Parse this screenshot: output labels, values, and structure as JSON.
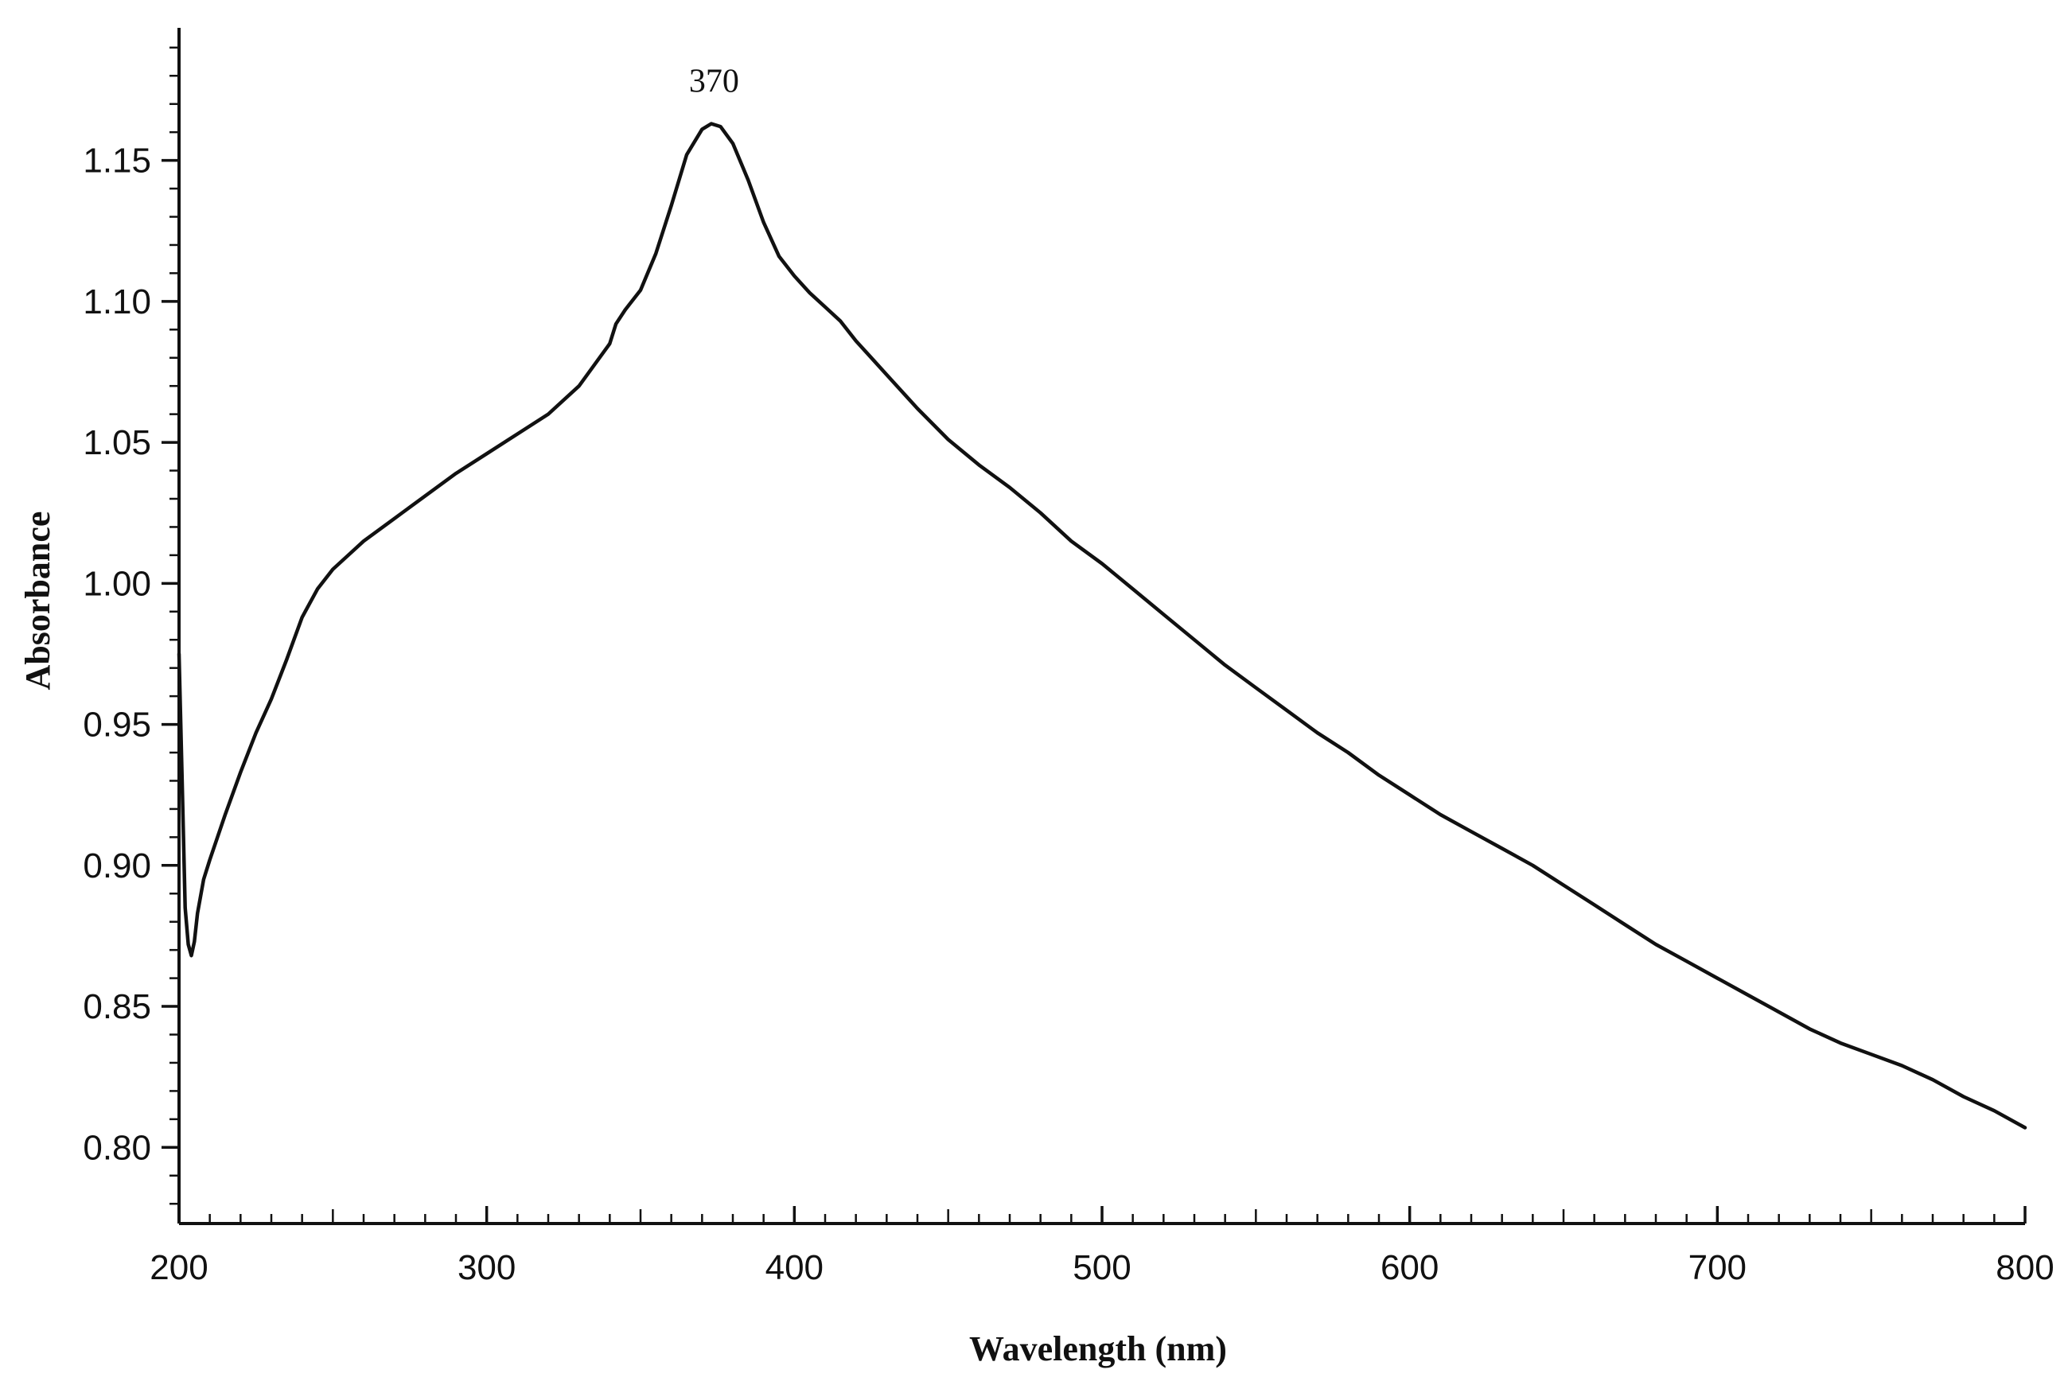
{
  "chart_data": {
    "type": "line",
    "title": "",
    "xlabel": "Wavelength (nm)",
    "ylabel": "Absorbance",
    "xlim": [
      200,
      800
    ],
    "ylim": [
      0.773,
      1.197
    ],
    "xticks": [
      200,
      300,
      400,
      500,
      600,
      700,
      800
    ],
    "xtick_labels": [
      "200",
      "300",
      "400",
      "500",
      "600",
      "700",
      "800"
    ],
    "x_minor_step": 10,
    "yticks": [
      0.8,
      0.85,
      0.9,
      0.95,
      1.0,
      1.05,
      1.1,
      1.15
    ],
    "ytick_labels": [
      "0.80",
      "0.85",
      "0.90",
      "0.95",
      "1.00",
      "1.05",
      "1.10",
      "1.15"
    ],
    "y_minor_step": 0.01,
    "grid": false,
    "legend": "none",
    "line_color": "#111111",
    "annotations": [
      {
        "text": "370",
        "x": 370,
        "y": 1.163
      }
    ],
    "series": [
      {
        "values": [
          [
            200,
            0.975
          ],
          [
            201,
            0.93
          ],
          [
            202,
            0.885
          ],
          [
            203,
            0.872
          ],
          [
            204,
            0.868
          ],
          [
            205,
            0.873
          ],
          [
            206,
            0.883
          ],
          [
            208,
            0.895
          ],
          [
            210,
            0.902
          ],
          [
            215,
            0.918
          ],
          [
            220,
            0.933
          ],
          [
            225,
            0.947
          ],
          [
            230,
            0.959
          ],
          [
            235,
            0.973
          ],
          [
            240,
            0.988
          ],
          [
            245,
            0.998
          ],
          [
            250,
            1.005
          ],
          [
            255,
            1.01
          ],
          [
            260,
            1.015
          ],
          [
            270,
            1.023
          ],
          [
            280,
            1.031
          ],
          [
            290,
            1.039
          ],
          [
            300,
            1.046
          ],
          [
            310,
            1.053
          ],
          [
            320,
            1.06
          ],
          [
            330,
            1.07
          ],
          [
            340,
            1.085
          ],
          [
            342,
            1.092
          ],
          [
            345,
            1.097
          ],
          [
            350,
            1.104
          ],
          [
            355,
            1.117
          ],
          [
            360,
            1.134
          ],
          [
            365,
            1.152
          ],
          [
            370,
            1.161
          ],
          [
            373,
            1.163
          ],
          [
            376,
            1.162
          ],
          [
            380,
            1.156
          ],
          [
            385,
            1.143
          ],
          [
            390,
            1.128
          ],
          [
            395,
            1.116
          ],
          [
            400,
            1.109
          ],
          [
            405,
            1.103
          ],
          [
            410,
            1.098
          ],
          [
            415,
            1.093
          ],
          [
            420,
            1.086
          ],
          [
            425,
            1.08
          ],
          [
            430,
            1.074
          ],
          [
            440,
            1.062
          ],
          [
            450,
            1.051
          ],
          [
            460,
            1.042
          ],
          [
            470,
            1.034
          ],
          [
            480,
            1.025
          ],
          [
            490,
            1.015
          ],
          [
            500,
            1.007
          ],
          [
            510,
            0.998
          ],
          [
            520,
            0.989
          ],
          [
            530,
            0.98
          ],
          [
            540,
            0.971
          ],
          [
            550,
            0.963
          ],
          [
            560,
            0.955
          ],
          [
            570,
            0.947
          ],
          [
            580,
            0.94
          ],
          [
            590,
            0.932
          ],
          [
            600,
            0.925
          ],
          [
            610,
            0.918
          ],
          [
            620,
            0.912
          ],
          [
            630,
            0.906
          ],
          [
            640,
            0.9
          ],
          [
            650,
            0.893
          ],
          [
            660,
            0.886
          ],
          [
            670,
            0.879
          ],
          [
            680,
            0.872
          ],
          [
            690,
            0.866
          ],
          [
            700,
            0.86
          ],
          [
            710,
            0.854
          ],
          [
            720,
            0.848
          ],
          [
            730,
            0.842
          ],
          [
            740,
            0.837
          ],
          [
            750,
            0.833
          ],
          [
            760,
            0.829
          ],
          [
            770,
            0.824
          ],
          [
            780,
            0.818
          ],
          [
            790,
            0.813
          ],
          [
            800,
            0.807
          ]
        ]
      }
    ]
  }
}
